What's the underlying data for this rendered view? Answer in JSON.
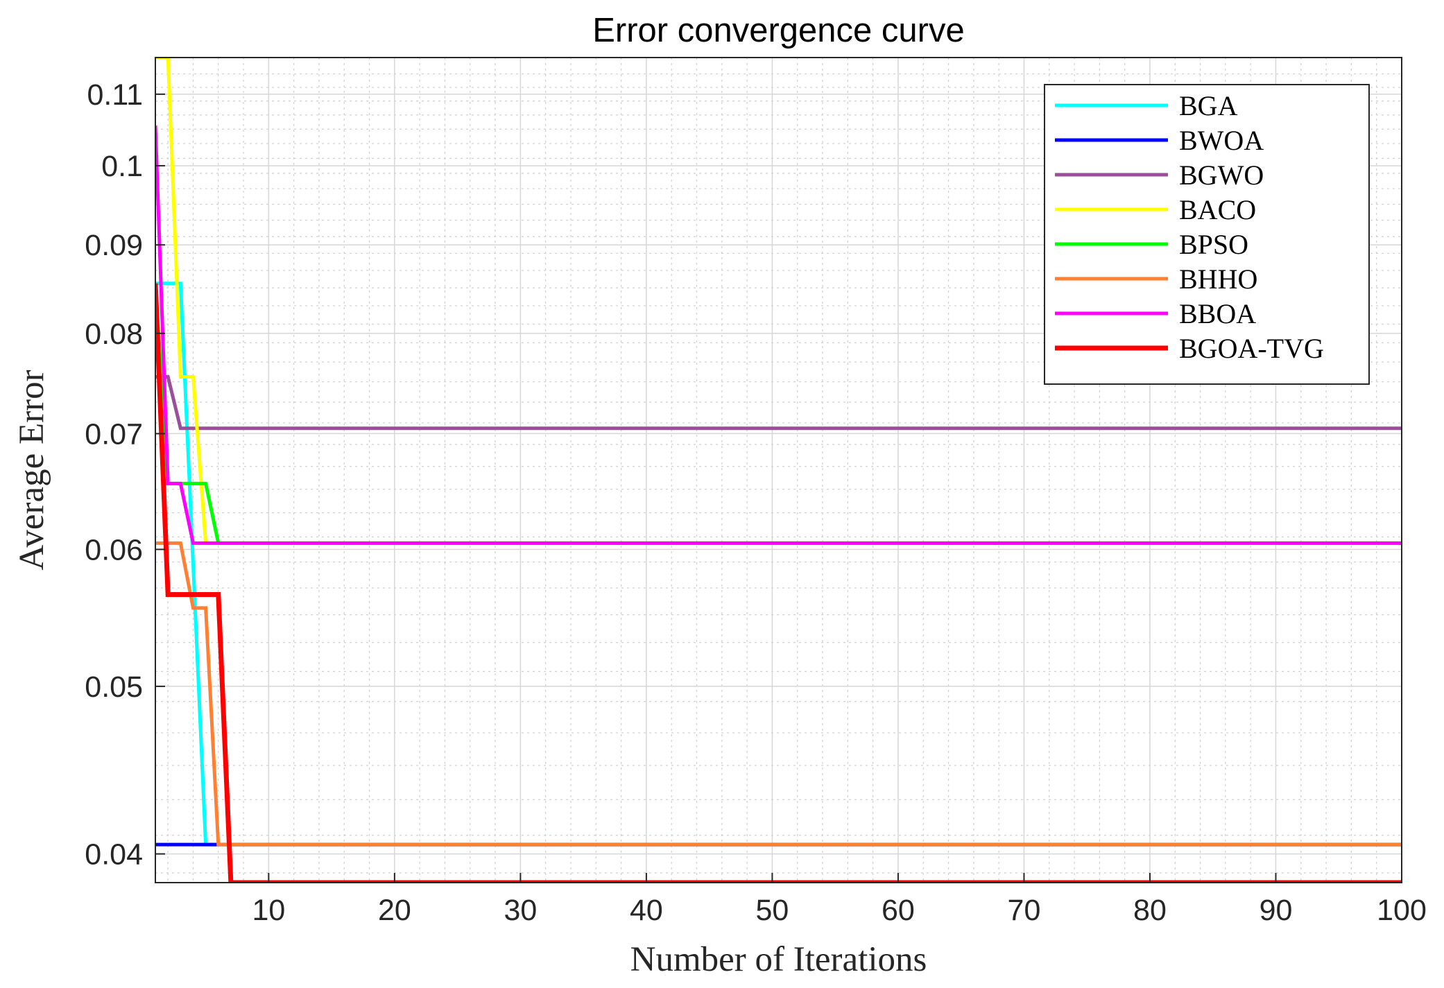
{
  "chart_data": {
    "type": "line",
    "title": "Error convergence curve",
    "xlabel": "Number of Iterations",
    "ylabel": "Average Error",
    "xlim": [
      1,
      100
    ],
    "ylim": [
      0.0385,
      0.1155
    ],
    "yscale": "log",
    "grid": true,
    "minor_grid": true,
    "legend_position": "top-right",
    "x_ticks": [
      10,
      20,
      30,
      40,
      50,
      60,
      70,
      80,
      90,
      100
    ],
    "x_tick_labels": [
      "10",
      "20",
      "30",
      "40",
      "50",
      "60",
      "70",
      "80",
      "90",
      "100"
    ],
    "y_ticks": [
      0.04,
      0.05,
      0.06,
      0.07,
      0.08,
      0.09,
      0.1,
      0.11
    ],
    "y_tick_labels": [
      "0.04",
      "0.05",
      "0.06",
      "0.07",
      "0.08",
      "0.09",
      "0.1",
      "0.11"
    ],
    "series": [
      {
        "name": "BGA",
        "color": "#00ffff",
        "points": [
          [
            1,
            0.0855
          ],
          [
            3,
            0.0855
          ],
          [
            5,
            0.0405
          ],
          [
            100,
            0.0405
          ]
        ]
      },
      {
        "name": "BWOA",
        "color": "#0000ff",
        "points": [
          [
            1,
            0.0405
          ],
          [
            6,
            0.0405
          ],
          [
            100,
            0.0405
          ]
        ]
      },
      {
        "name": "BGWO",
        "color": "#9b4f9b",
        "points": [
          [
            1,
            0.0755
          ],
          [
            2,
            0.0755
          ],
          [
            3,
            0.0705
          ],
          [
            100,
            0.0705
          ]
        ]
      },
      {
        "name": "BACO",
        "color": "#ffff00",
        "points": [
          [
            1,
            0.1155
          ],
          [
            2,
            0.1155
          ],
          [
            3,
            0.0755
          ],
          [
            4,
            0.0755
          ],
          [
            5,
            0.0605
          ],
          [
            100,
            0.0605
          ]
        ]
      },
      {
        "name": "BPSO",
        "color": "#00ff00",
        "points": [
          [
            1,
            0.0855
          ],
          [
            2,
            0.0655
          ],
          [
            5,
            0.0655
          ],
          [
            6,
            0.0605
          ],
          [
            100,
            0.0605
          ]
        ]
      },
      {
        "name": "BHHO",
        "color": "#ff8033",
        "points": [
          [
            1,
            0.0605
          ],
          [
            3,
            0.0605
          ],
          [
            4,
            0.0555
          ],
          [
            5,
            0.0555
          ],
          [
            6,
            0.0405
          ],
          [
            100,
            0.0405
          ]
        ]
      },
      {
        "name": "BBOA",
        "color": "#ff00ff",
        "points": [
          [
            1,
            0.1055
          ],
          [
            2,
            0.0655
          ],
          [
            3,
            0.0655
          ],
          [
            4,
            0.0605
          ],
          [
            100,
            0.0605
          ]
        ]
      },
      {
        "name": "BGOA-TVG",
        "color": "#ff0000",
        "points": [
          [
            1,
            0.0855
          ],
          [
            2,
            0.0565
          ],
          [
            6,
            0.0565
          ],
          [
            7,
            0.0385
          ],
          [
            100,
            0.0385
          ]
        ]
      }
    ]
  }
}
